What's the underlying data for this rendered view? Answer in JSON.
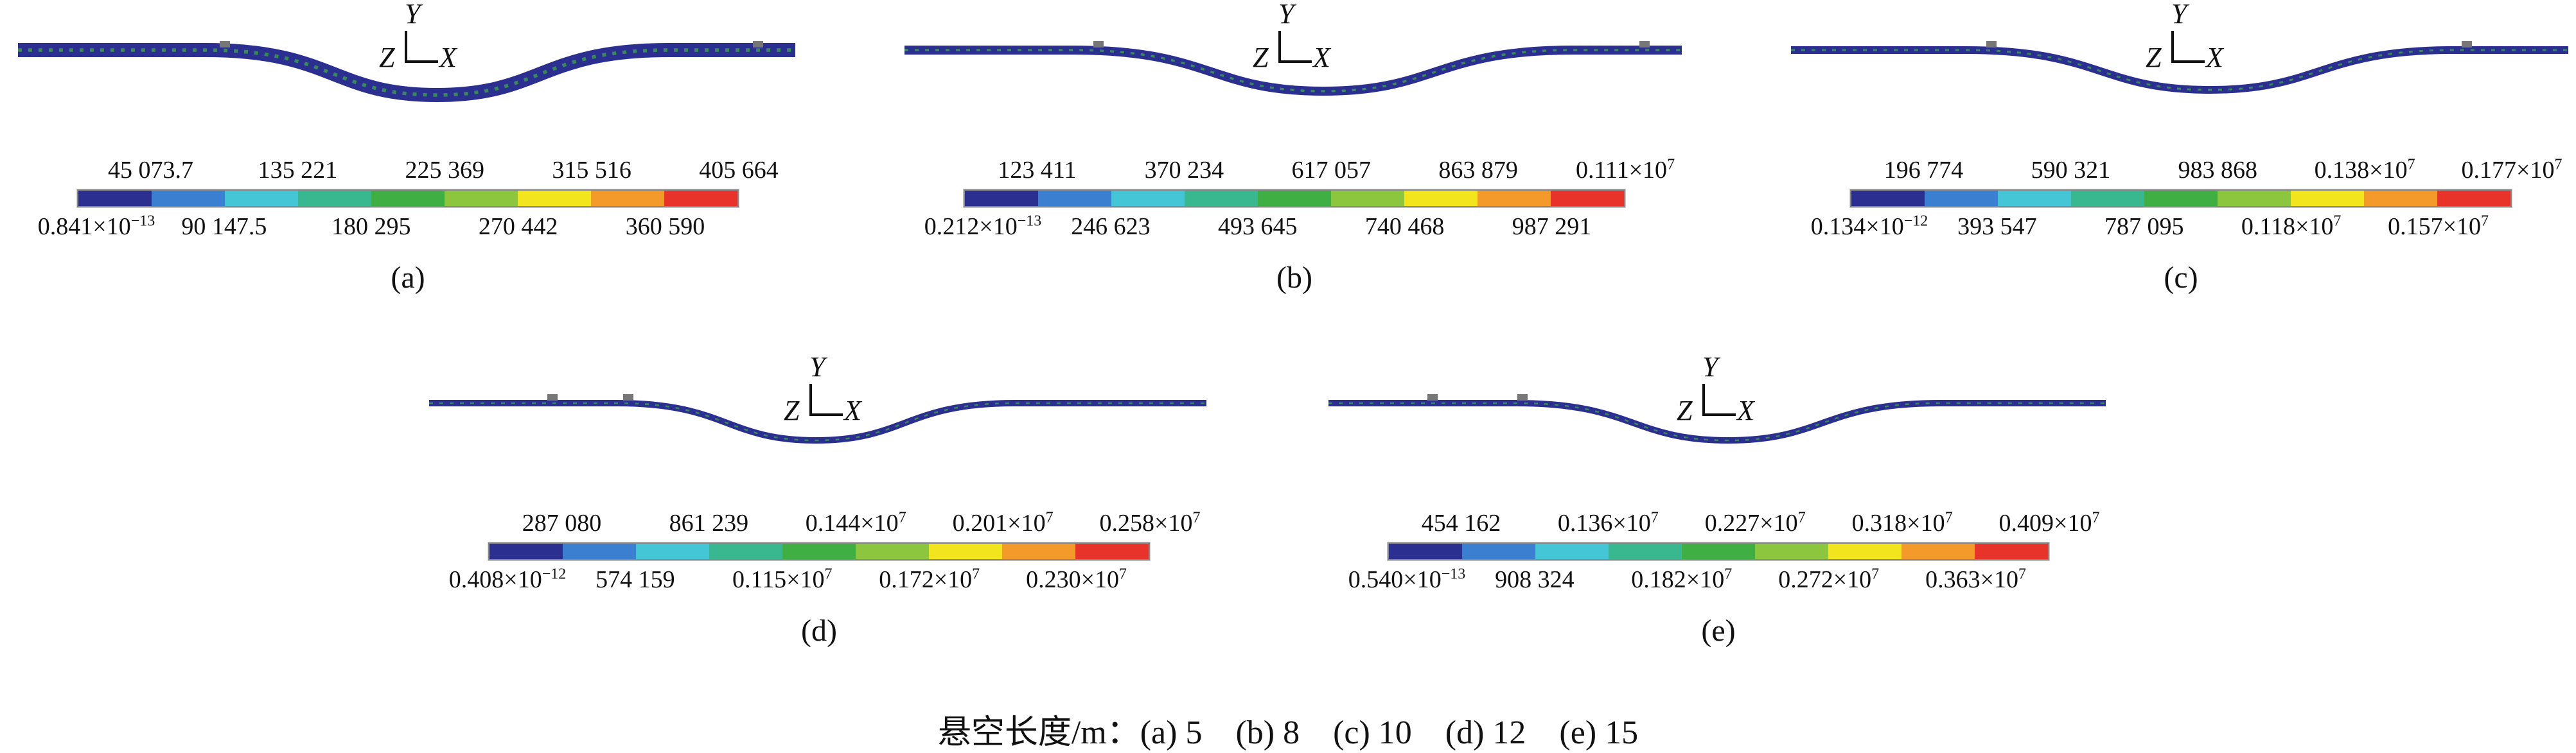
{
  "axes_labels": {
    "y": "Y",
    "z": "Z",
    "x": "X"
  },
  "colorbar_colors": [
    "#2b2f8f",
    "#3a7fd0",
    "#45c6d6",
    "#39b890",
    "#3fae43",
    "#8cc63f",
    "#f2e51e",
    "#f39a2a",
    "#e8332a"
  ],
  "panels": [
    {
      "caption": "(a)",
      "top_ticks": [
        {
          "m": "45 073.7",
          "e": ""
        },
        {
          "m": "135 221",
          "e": ""
        },
        {
          "m": "225 369",
          "e": ""
        },
        {
          "m": "315 516",
          "e": ""
        },
        {
          "m": "405 664",
          "e": ""
        }
      ],
      "bottom_ticks": [
        {
          "m": "0.841×10",
          "e": "−13"
        },
        {
          "m": "90 147.5",
          "e": ""
        },
        {
          "m": "180 295",
          "e": ""
        },
        {
          "m": "270 442",
          "e": ""
        },
        {
          "m": "360 590",
          "e": ""
        }
      ]
    },
    {
      "caption": "(b)",
      "top_ticks": [
        {
          "m": "123 411",
          "e": ""
        },
        {
          "m": "370 234",
          "e": ""
        },
        {
          "m": "617 057",
          "e": ""
        },
        {
          "m": "863 879",
          "e": ""
        },
        {
          "m": "0.111×10",
          "e": "7"
        }
      ],
      "bottom_ticks": [
        {
          "m": "0.212×10",
          "e": "−13"
        },
        {
          "m": "246 623",
          "e": ""
        },
        {
          "m": "493 645",
          "e": ""
        },
        {
          "m": "740 468",
          "e": ""
        },
        {
          "m": "987 291",
          "e": ""
        }
      ]
    },
    {
      "caption": "(c)",
      "top_ticks": [
        {
          "m": "196 774",
          "e": ""
        },
        {
          "m": "590 321",
          "e": ""
        },
        {
          "m": "983 868",
          "e": ""
        },
        {
          "m": "0.138×10",
          "e": "7"
        },
        {
          "m": "0.177×10",
          "e": "7"
        }
      ],
      "bottom_ticks": [
        {
          "m": "0.134×10",
          "e": "−12"
        },
        {
          "m": "393 547",
          "e": ""
        },
        {
          "m": "787 095",
          "e": ""
        },
        {
          "m": "0.118×10",
          "e": "7"
        },
        {
          "m": "0.157×10",
          "e": "7"
        }
      ]
    },
    {
      "caption": "(d)",
      "top_ticks": [
        {
          "m": "287 080",
          "e": ""
        },
        {
          "m": "861 239",
          "e": ""
        },
        {
          "m": "0.144×10",
          "e": "7"
        },
        {
          "m": "0.201×10",
          "e": "7"
        },
        {
          "m": "0.258×10",
          "e": "7"
        }
      ],
      "bottom_ticks": [
        {
          "m": "0.408×10",
          "e": "−12"
        },
        {
          "m": "574 159",
          "e": ""
        },
        {
          "m": "0.115×10",
          "e": "7"
        },
        {
          "m": "0.172×10",
          "e": "7"
        },
        {
          "m": "0.230×10",
          "e": "7"
        }
      ]
    },
    {
      "caption": "(e)",
      "top_ticks": [
        {
          "m": "454 162",
          "e": ""
        },
        {
          "m": "0.136×10",
          "e": "7"
        },
        {
          "m": "0.227×10",
          "e": "7"
        },
        {
          "m": "0.318×10",
          "e": "7"
        },
        {
          "m": "0.409×10",
          "e": "7"
        }
      ],
      "bottom_ticks": [
        {
          "m": "0.540×10",
          "e": "−13"
        },
        {
          "m": "908 324",
          "e": ""
        },
        {
          "m": "0.182×10",
          "e": "7"
        },
        {
          "m": "0.272×10",
          "e": "7"
        },
        {
          "m": "0.363×10",
          "e": "7"
        }
      ]
    }
  ],
  "figure_caption": "悬空长度/m：(a) 5　(b) 8　(c) 10　(d) 12　(e) 15"
}
